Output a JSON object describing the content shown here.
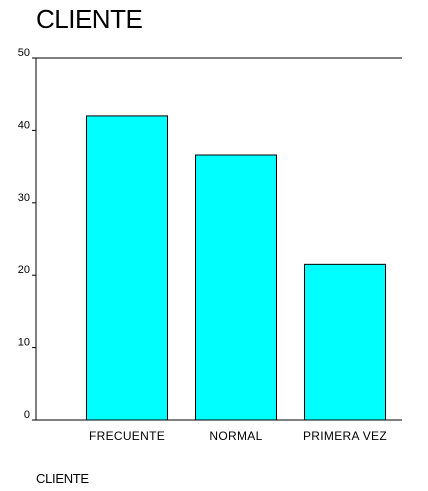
{
  "chart_data": {
    "type": "bar",
    "title": "CLIENTE",
    "xlabel": "CLIENTE",
    "ylabel": "",
    "categories": [
      "FRECUENTE",
      "NORMAL",
      "PRIMERA VEZ"
    ],
    "values": [
      42,
      36.6,
      21.5
    ],
    "ylim": [
      0,
      50
    ],
    "yticks": [
      "0",
      "10",
      "20",
      "30",
      "40",
      "50"
    ],
    "grid": false,
    "bar_color": "#00ffff",
    "bar_edge_color": "#000000"
  }
}
